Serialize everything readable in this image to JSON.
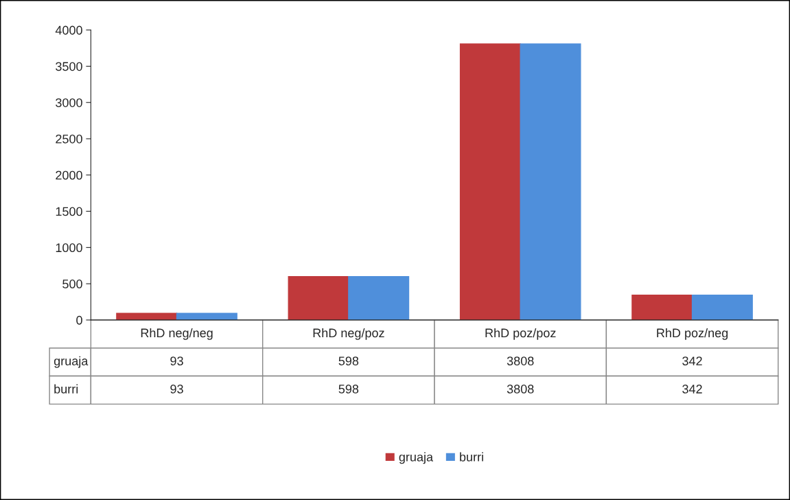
{
  "chart_data": {
    "type": "bar",
    "categories": [
      "RhD neg/neg",
      "RhD neg/poz",
      "RhD poz/poz",
      "RhD poz/neg"
    ],
    "series": [
      {
        "name": "gruaja",
        "color": "#c0393b",
        "values": [
          93,
          598,
          3808,
          342
        ]
      },
      {
        "name": "burri",
        "color": "#4f8fdb",
        "values": [
          93,
          598,
          3808,
          342
        ]
      }
    ],
    "ylim": [
      0,
      4000
    ],
    "yticks": [
      0,
      500,
      1000,
      1500,
      2000,
      2500,
      3000,
      3500,
      4000
    ],
    "grid": false,
    "legend": "bottom",
    "data_labels": true
  }
}
